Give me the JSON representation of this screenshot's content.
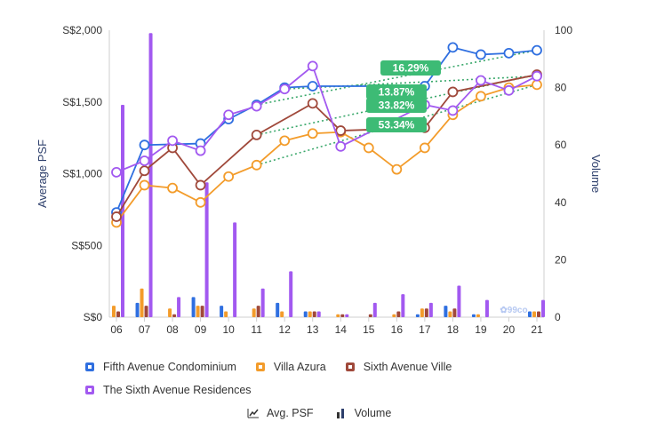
{
  "chart_data": {
    "type": "bar+line",
    "categories": [
      "06",
      "07",
      "08",
      "09",
      "10",
      "11",
      "12",
      "13",
      "14",
      "15",
      "16",
      "17",
      "18",
      "19",
      "20",
      "21"
    ],
    "y_left": {
      "label": "Average PSF",
      "ylim": [
        0,
        2000
      ],
      "ticks": [
        {
          "v": 0,
          "label": "S$0"
        },
        {
          "v": 500,
          "label": "S$500"
        },
        {
          "v": 1000,
          "label": "S$1,000"
        },
        {
          "v": 1500,
          "label": "S$1,500"
        },
        {
          "v": 2000,
          "label": "S$2,000"
        }
      ]
    },
    "y_right": {
      "label": "Volume",
      "ylim": [
        0,
        100
      ],
      "ticks": [
        0,
        20,
        40,
        60,
        80,
        100
      ]
    },
    "series": [
      {
        "name": "Fifth Avenue Condominium",
        "color": "#2f6fe0",
        "psf": [
          730,
          1200,
          null,
          1210,
          1380,
          1480,
          1600,
          1610,
          null,
          null,
          null,
          1610,
          1880,
          1830,
          1840,
          1860
        ],
        "volume": [
          null,
          5,
          null,
          7,
          4,
          null,
          5,
          2,
          null,
          null,
          null,
          1,
          4,
          1,
          null,
          2
        ]
      },
      {
        "name": "Villa Azura",
        "color": "#f39c2b",
        "psf": [
          660,
          920,
          900,
          800,
          980,
          1060,
          1230,
          1280,
          1290,
          1180,
          1030,
          1180,
          1410,
          1540,
          1600,
          1620
        ],
        "volume": [
          4,
          10,
          3,
          4,
          2,
          3,
          2,
          2,
          1,
          null,
          1,
          3,
          2,
          1,
          null,
          2
        ]
      },
      {
        "name": "Sixth Avenue Ville",
        "color": "#a0493b",
        "psf": [
          700,
          1020,
          1180,
          920,
          null,
          1270,
          null,
          1490,
          1300,
          null,
          null,
          1320,
          1570,
          null,
          null,
          1690
        ],
        "volume": [
          2,
          4,
          1,
          4,
          null,
          4,
          null,
          2,
          1,
          1,
          2,
          3,
          3,
          null,
          null,
          2
        ]
      },
      {
        "name": "The Sixth Avenue Residences",
        "color": "#a259f0",
        "psf": [
          1010,
          1090,
          1230,
          1160,
          1410,
          1470,
          1590,
          1750,
          1190,
          null,
          null,
          1480,
          1440,
          1650,
          1580,
          1680
        ],
        "volume": [
          74,
          99,
          7,
          47,
          33,
          10,
          16,
          2,
          1,
          5,
          8,
          5,
          11,
          6,
          null,
          6
        ]
      }
    ],
    "trend_badges": [
      "16.29%",
      "13.87%",
      "33.82%",
      "53.34%"
    ],
    "trend_lines": [
      {
        "color": "#2f6fe0",
        "from": {
          "x": "11",
          "y": 1480
        },
        "to": {
          "x": "21",
          "y": 1860
        }
      },
      {
        "color": "#a259f0",
        "from": {
          "x": "12",
          "y": 1590
        },
        "to": {
          "x": "21",
          "y": 1680
        }
      },
      {
        "color": "#a0493b",
        "from": {
          "x": "11",
          "y": 1270
        },
        "to": {
          "x": "21",
          "y": 1690
        }
      },
      {
        "color": "#f39c2b",
        "from": {
          "x": "11",
          "y": 1060
        },
        "to": {
          "x": "21",
          "y": 1620
        }
      }
    ],
    "legend_position": "bottom",
    "grid": false
  },
  "legend": {
    "items": [
      {
        "label": "Fifth Avenue Condominium",
        "color": "#2f6fe0"
      },
      {
        "label": "Villa Azura",
        "color": "#f39c2b"
      },
      {
        "label": "Sixth Avenue Ville",
        "color": "#a0493b"
      },
      {
        "label": "The Sixth Avenue Residences",
        "color": "#a259f0"
      }
    ]
  },
  "toggles": {
    "psf_label": "Avg. PSF",
    "volume_label": "Volume"
  },
  "watermark": "99co"
}
